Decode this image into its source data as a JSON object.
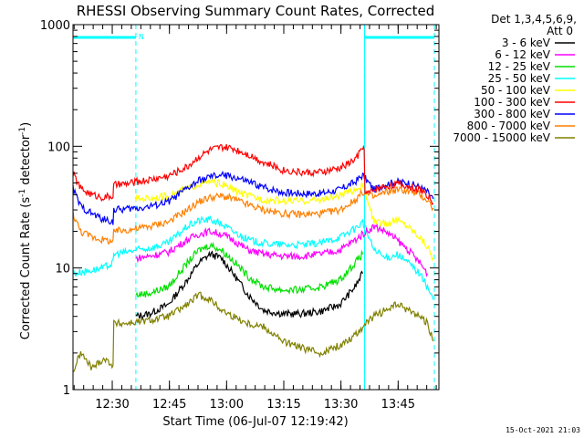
{
  "chart_data": {
    "type": "line",
    "title": "RHESSI Observing Summary Count Rates, Corrected",
    "xlabel": "Start Time (06-Jul-07 12:19:42)",
    "ylabel_main": "Corrected Count Rate (s",
    "ylabel_sup1": "-1",
    "ylabel_mid": " detector",
    "ylabel_sup2": "-1",
    "ylabel_end": ")",
    "y_scale": "log",
    "ylim": [
      1,
      1000
    ],
    "xlim_minutes": [
      0,
      96
    ],
    "y_ticks": [
      "1",
      "10",
      "100",
      "1000"
    ],
    "y_tick_values": [
      1,
      10,
      100,
      1000
    ],
    "x_ticks": [
      "12:30",
      "12:45",
      "13:00",
      "13:15",
      "13:30",
      "13:45"
    ],
    "x_tick_minutes": [
      10.3,
      25.3,
      40.3,
      55.3,
      70.3,
      85.3
    ],
    "legend_header_1": "Det 1,3,4,5,6,9,",
    "legend_header_2": "Att 0",
    "night_marks": [
      {
        "start": 0,
        "end": 16.5,
        "label": "N"
      },
      {
        "start": 76.5,
        "end": 94.8,
        "label": ""
      }
    ],
    "night_label": "N",
    "footer_date": "15-Oct-2021 21:03",
    "series": [
      {
        "name": "3 - 6 keV",
        "color": "#000000",
        "points": [
          [
            16.5,
            4
          ],
          [
            20,
            4.2
          ],
          [
            25,
            5
          ],
          [
            30,
            8
          ],
          [
            33,
            11
          ],
          [
            36,
            13
          ],
          [
            39,
            12
          ],
          [
            42,
            9
          ],
          [
            46,
            6
          ],
          [
            50,
            4.5
          ],
          [
            55,
            4.2
          ],
          [
            60,
            4.2
          ],
          [
            65,
            4.4
          ],
          [
            70,
            5
          ],
          [
            74,
            7
          ],
          [
            76,
            9
          ]
        ]
      },
      {
        "name": "6 - 12 keV",
        "color": "#ff00ff",
        "points": [
          [
            16.5,
            12
          ],
          [
            20,
            12.5
          ],
          [
            25,
            13.5
          ],
          [
            30,
            17
          ],
          [
            33,
            19
          ],
          [
            36,
            20
          ],
          [
            39,
            19
          ],
          [
            42,
            17
          ],
          [
            46,
            14
          ],
          [
            50,
            13
          ],
          [
            55,
            12.5
          ],
          [
            60,
            12.5
          ],
          [
            65,
            13
          ],
          [
            70,
            14
          ],
          [
            74,
            17
          ],
          [
            76,
            19
          ],
          [
            79,
            22
          ],
          [
            82,
            20
          ],
          [
            85,
            17
          ],
          [
            88,
            14
          ],
          [
            91,
            11
          ],
          [
            93,
            9
          ]
        ]
      },
      {
        "name": "12 - 25 keV",
        "color": "#00e000",
        "points": [
          [
            16.5,
            6
          ],
          [
            20,
            6.2
          ],
          [
            25,
            7
          ],
          [
            30,
            11
          ],
          [
            33,
            14
          ],
          [
            36,
            15.5
          ],
          [
            39,
            14
          ],
          [
            42,
            11.5
          ],
          [
            46,
            8.5
          ],
          [
            50,
            7
          ],
          [
            55,
            6.6
          ],
          [
            60,
            6.6
          ],
          [
            65,
            7
          ],
          [
            70,
            8
          ],
          [
            74,
            11
          ],
          [
            76,
            13
          ]
        ]
      },
      {
        "name": "25 - 50 keV",
        "color": "#00ffff",
        "points": [
          [
            0,
            9
          ],
          [
            4,
            9.5
          ],
          [
            8,
            10
          ],
          [
            10.5,
            11
          ],
          [
            10.7,
            13
          ],
          [
            14,
            13.5
          ],
          [
            16.5,
            14
          ],
          [
            20,
            14.5
          ],
          [
            25,
            16
          ],
          [
            30,
            22
          ],
          [
            33,
            24.5
          ],
          [
            36,
            25
          ],
          [
            39,
            23
          ],
          [
            42,
            20
          ],
          [
            46,
            17
          ],
          [
            50,
            16
          ],
          [
            55,
            15.5
          ],
          [
            60,
            15.5
          ],
          [
            65,
            16
          ],
          [
            70,
            18
          ],
          [
            74,
            21
          ],
          [
            76,
            24
          ],
          [
            79,
            14
          ],
          [
            82,
            12
          ],
          [
            85,
            13
          ],
          [
            88,
            11
          ],
          [
            91,
            9
          ],
          [
            93,
            7
          ],
          [
            94.5,
            5.5
          ]
        ]
      },
      {
        "name": "50 - 100 keV",
        "color": "#ffff00",
        "points": [
          [
            16.5,
            37
          ],
          [
            20,
            37.5
          ],
          [
            25,
            39
          ],
          [
            30,
            45
          ],
          [
            33,
            49
          ],
          [
            36,
            51
          ],
          [
            39,
            49
          ],
          [
            42,
            44
          ],
          [
            46,
            39
          ],
          [
            50,
            36.5
          ],
          [
            55,
            35.5
          ],
          [
            60,
            35.5
          ],
          [
            65,
            36.5
          ],
          [
            70,
            39
          ],
          [
            74,
            44
          ],
          [
            76,
            48
          ],
          [
            79,
            24
          ],
          [
            82,
            23
          ],
          [
            85,
            25
          ],
          [
            88,
            22
          ],
          [
            91,
            18
          ],
          [
            93,
            15
          ],
          [
            94.5,
            12
          ]
        ]
      },
      {
        "name": "100 - 300 keV",
        "color": "#ff0000",
        "points": [
          [
            0,
            60
          ],
          [
            2,
            45
          ],
          [
            5,
            40
          ],
          [
            8,
            38
          ],
          [
            10.5,
            39
          ],
          [
            10.7,
            48
          ],
          [
            14,
            49
          ],
          [
            16.5,
            51
          ],
          [
            20,
            53
          ],
          [
            25,
            57
          ],
          [
            30,
            68
          ],
          [
            33,
            82
          ],
          [
            36,
            93
          ],
          [
            39,
            98
          ],
          [
            42,
            96
          ],
          [
            46,
            86
          ],
          [
            50,
            74
          ],
          [
            55,
            64
          ],
          [
            60,
            61
          ],
          [
            65,
            61
          ],
          [
            70,
            66
          ],
          [
            74,
            78
          ],
          [
            76,
            96
          ],
          [
            76.4,
            100
          ],
          [
            76.6,
            40
          ],
          [
            79,
            44
          ],
          [
            82,
            47
          ],
          [
            85,
            49
          ],
          [
            88,
            47
          ],
          [
            91,
            44
          ],
          [
            93,
            40
          ],
          [
            94.5,
            34
          ]
        ]
      },
      {
        "name": "300 - 800 keV",
        "color": "#0000ff",
        "points": [
          [
            0,
            45
          ],
          [
            2,
            32
          ],
          [
            5,
            28
          ],
          [
            8,
            25
          ],
          [
            10.5,
            24
          ],
          [
            10.7,
            30
          ],
          [
            14,
            30.5
          ],
          [
            16.5,
            31
          ],
          [
            20,
            32
          ],
          [
            25,
            35
          ],
          [
            30,
            45
          ],
          [
            33,
            52
          ],
          [
            36,
            56
          ],
          [
            39,
            58
          ],
          [
            42,
            56
          ],
          [
            46,
            51
          ],
          [
            50,
            46
          ],
          [
            55,
            42
          ],
          [
            60,
            41
          ],
          [
            65,
            41
          ],
          [
            70,
            44
          ],
          [
            74,
            51
          ],
          [
            76,
            58
          ],
          [
            79,
            44
          ],
          [
            82,
            49
          ],
          [
            85,
            51
          ],
          [
            88,
            50
          ],
          [
            91,
            46
          ],
          [
            93,
            42
          ],
          [
            94.5,
            37
          ]
        ]
      },
      {
        "name": "800 - 7000 keV",
        "color": "#ff8000",
        "points": [
          [
            0,
            28
          ],
          [
            2,
            20
          ],
          [
            5,
            18
          ],
          [
            8,
            17
          ],
          [
            10.5,
            16.5
          ],
          [
            10.7,
            20
          ],
          [
            14,
            20.5
          ],
          [
            16.5,
            21
          ],
          [
            20,
            22
          ],
          [
            25,
            24
          ],
          [
            30,
            30
          ],
          [
            33,
            35
          ],
          [
            36,
            38
          ],
          [
            39,
            39
          ],
          [
            42,
            37
          ],
          [
            46,
            33
          ],
          [
            50,
            30
          ],
          [
            55,
            28
          ],
          [
            60,
            27.5
          ],
          [
            65,
            28
          ],
          [
            70,
            30
          ],
          [
            74,
            36
          ],
          [
            76,
            42
          ],
          [
            79,
            38
          ],
          [
            82,
            42
          ],
          [
            85,
            44
          ],
          [
            88,
            43
          ],
          [
            91,
            40
          ],
          [
            93,
            36
          ],
          [
            94.5,
            31
          ]
        ]
      },
      {
        "name": "7000 - 15000 keV",
        "color": "#808000",
        "points": [
          [
            0,
            1.4
          ],
          [
            2,
            2
          ],
          [
            5,
            1.5
          ],
          [
            8,
            1.8
          ],
          [
            10.5,
            1.6
          ],
          [
            10.7,
            3.5
          ],
          [
            14,
            3.5
          ],
          [
            20,
            3.7
          ],
          [
            25,
            4
          ],
          [
            30,
            5
          ],
          [
            33,
            6
          ],
          [
            36,
            5.5
          ],
          [
            39,
            4.5
          ],
          [
            42,
            4
          ],
          [
            46,
            3.5
          ],
          [
            50,
            3.3
          ],
          [
            55,
            2.5
          ],
          [
            60,
            2.2
          ],
          [
            65,
            2
          ],
          [
            70,
            2.3
          ],
          [
            74,
            2.8
          ],
          [
            76,
            3.3
          ],
          [
            79,
            4
          ],
          [
            82,
            4.5
          ],
          [
            85,
            5
          ],
          [
            88,
            4.5
          ],
          [
            91,
            4
          ],
          [
            93,
            3.5
          ],
          [
            94.5,
            2.5
          ]
        ]
      }
    ]
  }
}
